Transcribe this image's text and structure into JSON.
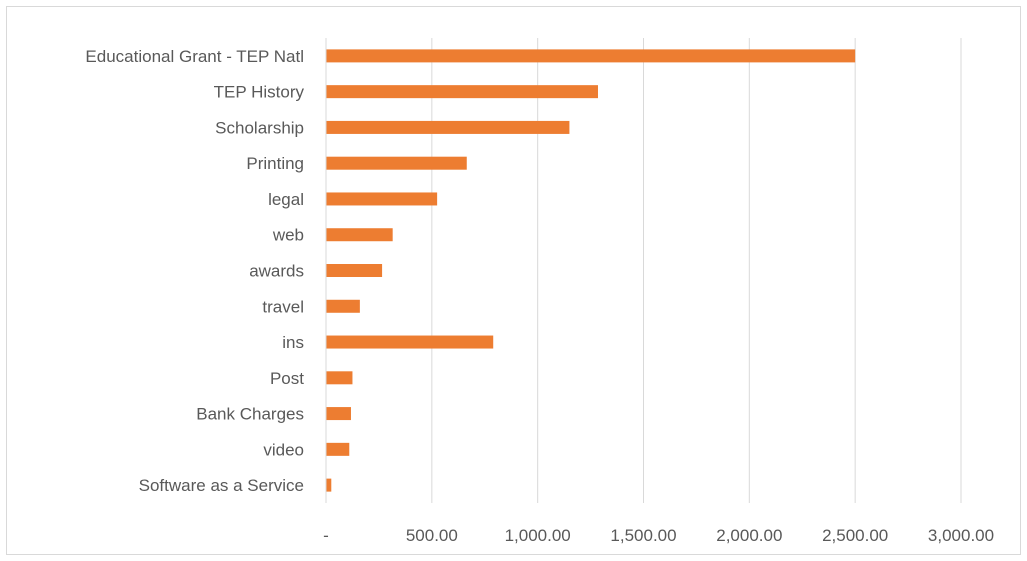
{
  "chart_data": {
    "type": "bar",
    "orientation": "horizontal",
    "categories": [
      "Educational Grant -  TEP Natl",
      "TEP History",
      "Scholarship",
      "Printing",
      "legal",
      "web",
      "awards",
      "travel",
      "ins",
      "Post",
      "Bank Charges",
      "video",
      "Software as a Service"
    ],
    "values": [
      2500,
      1285,
      1150,
      665,
      525,
      315,
      265,
      160,
      790,
      125,
      118,
      110,
      25
    ],
    "title": "",
    "xlabel": "",
    "ylabel": "",
    "xlim": [
      0,
      3000
    ],
    "x_ticks": [
      0,
      500,
      1000,
      1500,
      2000,
      2500,
      3000
    ],
    "x_tick_labels": [
      "-",
      "500.00",
      "1,000.00",
      "1,500.00",
      "2,000.00",
      "2,500.00",
      "3,000.00"
    ],
    "grid": "vertical",
    "legend": "none",
    "colors": {
      "bar": "#ED7D31",
      "grid": "#d9d9d9",
      "text": "#595959"
    }
  }
}
